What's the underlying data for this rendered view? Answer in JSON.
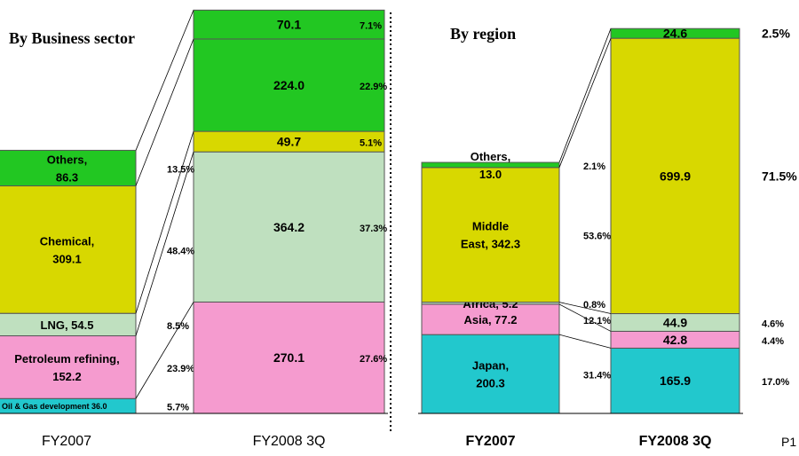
{
  "page_number": "P1",
  "chart_data": [
    {
      "type": "bar",
      "subtype": "stacked",
      "title": "By Business sector",
      "categories": [
        "FY2007",
        "FY2008 3Q"
      ],
      "series": [
        {
          "name": "Oil & Gas development",
          "values": [
            36.0,
            null
          ],
          "share_labels": [
            "5.7%",
            ""
          ]
        },
        {
          "name": "Petroleum refining",
          "values": [
            152.2,
            270.1
          ],
          "share_labels": [
            "23.9%",
            "27.6%"
          ]
        },
        {
          "name": "LNG",
          "values": [
            54.5,
            364.2
          ],
          "share_labels": [
            "8.5%",
            "37.3%"
          ]
        },
        {
          "name": "Chemical",
          "values": [
            309.1,
            49.7
          ],
          "share_labels": [
            "48.4%",
            "5.1%"
          ]
        },
        {
          "name": "Others",
          "values": [
            86.3,
            224.0
          ],
          "share_labels": [
            "13.5%",
            "22.9%"
          ]
        },
        {
          "name": "",
          "values": [
            null,
            70.1
          ],
          "share_labels": [
            "",
            "7.1%"
          ]
        }
      ],
      "segment_labels": [
        [
          "Oil & Gas development",
          "36.0"
        ],
        [
          "Petroleum refining,",
          "152.2"
        ],
        [
          "LNG, 54.5"
        ],
        [
          "Chemical,",
          "309.1"
        ],
        [
          "Others,",
          "86.3"
        ]
      ],
      "colors": [
        "#22c8cd",
        "#f59bcf",
        "#bfe0bf",
        "#d8d800",
        "#22c722",
        "#22c722"
      ]
    },
    {
      "type": "bar",
      "subtype": "stacked",
      "title": "By region",
      "categories": [
        "FY2007",
        "FY2008 3Q"
      ],
      "series": [
        {
          "name": "Japan",
          "values": [
            200.3,
            165.9
          ],
          "share_labels": [
            "31.4%",
            "17.0%"
          ]
        },
        {
          "name": "Asia",
          "values": [
            77.2,
            42.8
          ],
          "share_labels": [
            "12.1%",
            "4.4%"
          ]
        },
        {
          "name": "Africa",
          "values": [
            5.2,
            44.9
          ],
          "share_labels": [
            "0.8%",
            "4.6%"
          ]
        },
        {
          "name": "Middle East",
          "values": [
            342.3,
            699.9
          ],
          "share_labels": [
            "53.6%",
            "71.5%"
          ]
        },
        {
          "name": "Others",
          "values": [
            13.0,
            24.6
          ],
          "share_labels": [
            "2.1%",
            "2.5%"
          ]
        }
      ],
      "segment_labels": [
        [
          "Japan,",
          "200.3"
        ],
        [
          "Asia, 77.2"
        ],
        [
          "Africa, 5.2"
        ],
        [
          "Middle",
          "East, 342.3"
        ],
        [
          "Others,",
          "13.0"
        ]
      ],
      "colors": [
        "#22c8cd",
        "#f59bcf",
        "#bfe0bf",
        "#d8d800",
        "#22c722"
      ]
    }
  ]
}
